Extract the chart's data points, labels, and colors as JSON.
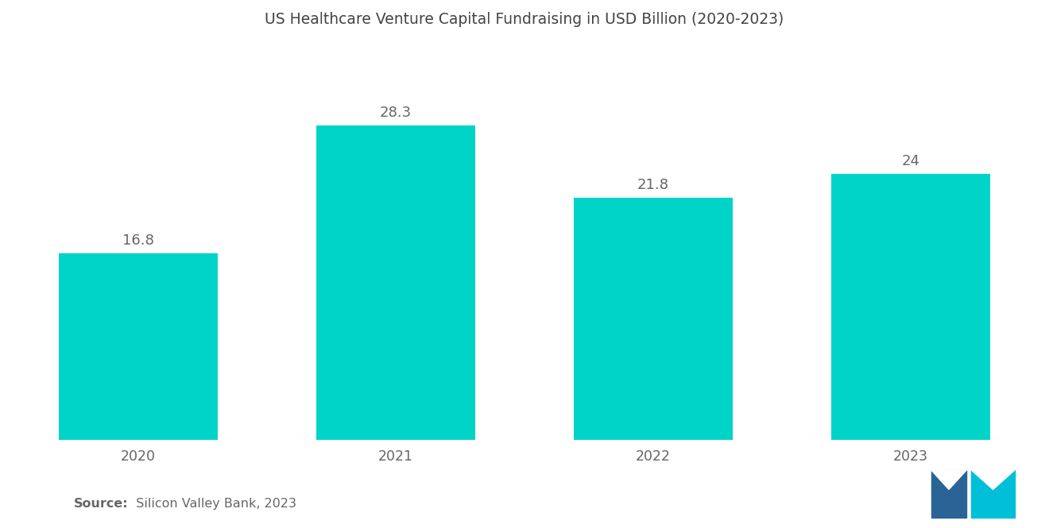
{
  "title": "US Healthcare Venture Capital Fundraising in USD Billion (2020-2023)",
  "categories": [
    "2020",
    "2021",
    "2022",
    "2023"
  ],
  "values": [
    16.8,
    28.3,
    21.8,
    24
  ],
  "bar_color": "#00D4C8",
  "background_color": "#ffffff",
  "label_color": "#666666",
  "title_color": "#444444",
  "source_bold": "Source:",
  "source_rest": "  Silicon Valley Bank, 2023",
  "ylim": [
    0,
    35
  ],
  "bar_width": 0.62,
  "title_fontsize": 13.5,
  "label_fontsize": 13,
  "tick_fontsize": 12.5,
  "source_fontsize": 11.5
}
